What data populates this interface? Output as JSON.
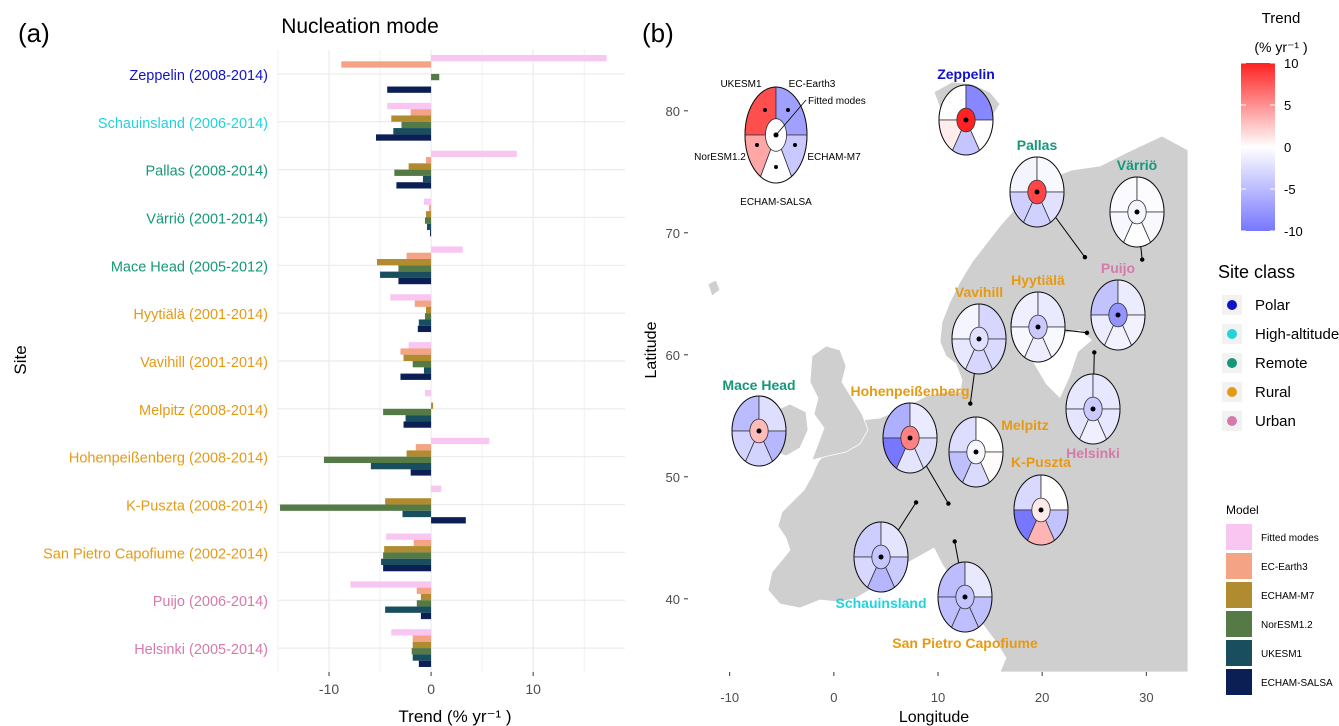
{
  "panel_a_label": "(a)",
  "panel_b_label": "(b)",
  "chart_data": [
    {
      "type": "bar",
      "orientation": "horizontal",
      "title": "Nucleation mode",
      "xlabel": "Trend (% yr⁻¹ )",
      "ylabel": "Site",
      "xlim": [
        -15,
        19
      ],
      "xticks": [
        -10,
        0,
        10
      ],
      "grid": true,
      "legend_title": "Model",
      "categories": [
        {
          "label": "Zeppelin (2008-2014)",
          "site_class": "Polar"
        },
        {
          "label": "Schauinsland (2006-2014)",
          "site_class": "High-altitude"
        },
        {
          "label": "Pallas (2008-2014)",
          "site_class": "Remote"
        },
        {
          "label": "Värriö (2001-2014)",
          "site_class": "Remote"
        },
        {
          "label": "Mace Head (2005-2012)",
          "site_class": "Remote"
        },
        {
          "label": "Hyytiälä (2001-2014)",
          "site_class": "Rural"
        },
        {
          "label": "Vavihill (2001-2014)",
          "site_class": "Rural"
        },
        {
          "label": "Melpitz (2008-2014)",
          "site_class": "Rural"
        },
        {
          "label": "Hohenpeißenberg (2008-2014)",
          "site_class": "Rural"
        },
        {
          "label": "K-Puszta (2008-2014)",
          "site_class": "Rural"
        },
        {
          "label": "San Pietro Capofiume (2002-2014)",
          "site_class": "Rural"
        },
        {
          "label": "Puijo (2006-2014)",
          "site_class": "Urban"
        },
        {
          "label": "Helsinki (2005-2014)",
          "site_class": "Urban"
        }
      ],
      "series": [
        {
          "name": "Fitted modes",
          "color": "#f9c6f2",
          "values": [
            17.2,
            -4.3,
            8.4,
            -0.7,
            3.1,
            -4.0,
            -2.2,
            -0.6,
            5.7,
            1.0,
            -4.4,
            -7.9,
            -3.9
          ]
        },
        {
          "name": "EC-Earth3",
          "color": "#f4a384",
          "values": [
            -8.8,
            -2.0,
            -0.5,
            -0.2,
            -2.4,
            -1.6,
            -3.0,
            0.0,
            -1.5,
            0.0,
            -1.7,
            -1.4,
            -1.8
          ]
        },
        {
          "name": "ECHAM-M7",
          "color": "#b08b30",
          "values": [
            0.0,
            -3.9,
            -2.2,
            -0.5,
            -5.3,
            -0.5,
            -2.7,
            0.2,
            -2.4,
            -4.5,
            -4.6,
            -1.0,
            -1.8
          ]
        },
        {
          "name": "NorESM1.2",
          "color": "#557a46",
          "values": [
            0.8,
            -2.9,
            -3.6,
            -0.6,
            -3.2,
            -0.6,
            -1.8,
            -4.7,
            -10.5,
            -14.8,
            -4.7,
            -1.4,
            -1.9
          ]
        },
        {
          "name": "UKESM1",
          "color": "#184e5e",
          "values": [
            0.0,
            -3.7,
            -0.8,
            -0.4,
            -5.0,
            -1.2,
            -0.7,
            -2.5,
            -5.9,
            -2.8,
            -4.9,
            -4.5,
            -1.8
          ]
        },
        {
          "name": "ECHAM-SALSA",
          "color": "#0b1f54",
          "values": [
            -4.3,
            -5.4,
            -3.4,
            -0.1,
            -3.2,
            -1.3,
            -3.0,
            -2.7,
            -2.0,
            3.4,
            -4.7,
            -1.0,
            -1.2
          ]
        }
      ]
    },
    {
      "type": "map",
      "xlabel": "Longitude",
      "ylabel": "Latitude",
      "xlim": [
        -14,
        34
      ],
      "ylim": [
        34,
        84
      ],
      "xticks": [
        -10,
        0,
        10,
        20,
        30
      ],
      "yticks": [
        40,
        50,
        60,
        70,
        80
      ],
      "colorbar": {
        "title": "Trend",
        "unit": "(% yr⁻¹ )",
        "range": [
          -10,
          10
        ],
        "ticks": [
          10,
          5,
          0,
          -5,
          -10
        ],
        "low_color": "#7777ff",
        "mid_color": "#ffffff",
        "high_color": "#ff2222"
      },
      "site_class_legend": {
        "title": "Site class",
        "items": [
          {
            "name": "Polar",
            "color": "#1212c8"
          },
          {
            "name": "High-altitude",
            "color": "#22d3dc"
          },
          {
            "name": "Remote",
            "color": "#16977a"
          },
          {
            "name": "Rural",
            "color": "#e69a14"
          },
          {
            "name": "Urban",
            "color": "#d67aab"
          }
        ]
      },
      "key_labels": {
        "ukesm": "UKESM1",
        "ecearth": "EC-Earth3",
        "fitted": "Fitted modes",
        "noresm": "NorESM1.2",
        "m7": "ECHAM-M7",
        "salsa": "ECHAM-SALSA"
      },
      "sites": [
        {
          "name": "Zeppelin",
          "class": "Polar",
          "lon": 11.9,
          "lat": 78.9,
          "trends": {
            "fitted": 17.2,
            "ecearth": -8.8,
            "m7": 0.0,
            "noresm": 0.8,
            "ukesm": 0.0,
            "salsa": -4.3
          }
        },
        {
          "name": "Pallas",
          "class": "Remote",
          "lon": 24.1,
          "lat": 68.0,
          "trends": {
            "fitted": 8.4,
            "ecearth": -0.5,
            "m7": -2.2,
            "noresm": -3.6,
            "ukesm": -0.8,
            "salsa": -3.4
          }
        },
        {
          "name": "Värriö",
          "class": "Remote",
          "lon": 29.6,
          "lat": 67.8,
          "trends": {
            "fitted": -0.7,
            "ecearth": -0.2,
            "m7": -0.5,
            "noresm": -0.6,
            "ukesm": -0.4,
            "salsa": -0.1
          }
        },
        {
          "name": "Puijo",
          "class": "Urban",
          "lon": 27.7,
          "lat": 62.9,
          "trends": {
            "fitted": -7.9,
            "ecearth": -1.4,
            "m7": -1.0,
            "noresm": -1.4,
            "ukesm": -4.5,
            "salsa": -1.0
          }
        },
        {
          "name": "Hyytiälä",
          "class": "Rural",
          "lon": 24.3,
          "lat": 61.8,
          "trends": {
            "fitted": -4.0,
            "ecearth": -1.6,
            "m7": -0.5,
            "noresm": -0.6,
            "ukesm": -1.2,
            "salsa": -1.3
          }
        },
        {
          "name": "Vavihill",
          "class": "Rural",
          "lon": 13.1,
          "lat": 56.0,
          "trends": {
            "fitted": -2.2,
            "ecearth": -3.0,
            "m7": -2.7,
            "noresm": -1.8,
            "ukesm": -0.7,
            "salsa": -3.0
          }
        },
        {
          "name": "Helsinki",
          "class": "Urban",
          "lon": 25.0,
          "lat": 60.2,
          "trends": {
            "fitted": -3.9,
            "ecearth": -1.8,
            "m7": -1.8,
            "noresm": -1.9,
            "ukesm": -1.8,
            "salsa": -1.2
          }
        },
        {
          "name": "Mace Head",
          "class": "Remote",
          "lon": -9.9,
          "lat": 53.3,
          "trends": {
            "fitted": 3.1,
            "ecearth": -2.4,
            "m7": -5.3,
            "noresm": -3.2,
            "ukesm": -5.0,
            "salsa": -3.2
          }
        },
        {
          "name": "Hohenpeißenberg",
          "class": "Rural",
          "lon": 11.0,
          "lat": 47.8,
          "trends": {
            "fitted": 5.7,
            "ecearth": -1.5,
            "m7": -2.4,
            "noresm": -10.5,
            "ukesm": -5.9,
            "salsa": -2.0
          }
        },
        {
          "name": "Melpitz",
          "class": "Rural",
          "lon": 12.9,
          "lat": 51.5,
          "trends": {
            "fitted": -0.6,
            "ecearth": 0.0,
            "m7": 0.2,
            "noresm": -4.7,
            "ukesm": -2.5,
            "salsa": -2.7
          }
        },
        {
          "name": "K-Puszta",
          "class": "Rural",
          "lon": 19.6,
          "lat": 46.9,
          "trends": {
            "fitted": 1.0,
            "ecearth": 0.0,
            "m7": -4.5,
            "noresm": -14.8,
            "ukesm": -2.8,
            "salsa": 3.4
          }
        },
        {
          "name": "Schauinsland",
          "class": "High-altitude",
          "lon": 7.9,
          "lat": 47.9,
          "trends": {
            "fitted": -4.3,
            "ecearth": -2.0,
            "m7": -3.9,
            "noresm": -2.9,
            "ukesm": -3.7,
            "salsa": -5.4
          }
        },
        {
          "name": "San Pietro Capofiume",
          "class": "Rural",
          "lon": 11.6,
          "lat": 44.7,
          "trends": {
            "fitted": -4.4,
            "ecearth": -1.7,
            "m7": -4.6,
            "noresm": -4.7,
            "ukesm": -4.9,
            "salsa": -4.7
          }
        }
      ]
    }
  ]
}
